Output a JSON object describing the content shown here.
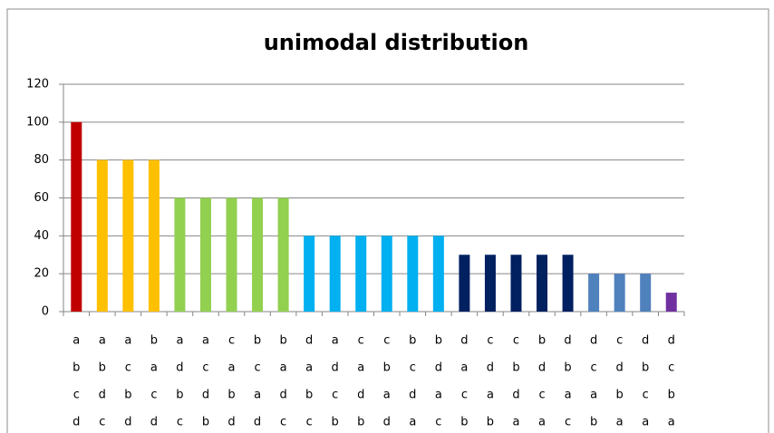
{
  "chart_data": {
    "type": "bar",
    "title": "unimodal distribution",
    "categories": [
      [
        "a",
        "b",
        "c",
        "d"
      ],
      [
        "a",
        "b",
        "d",
        "c"
      ],
      [
        "a",
        "c",
        "b",
        "d"
      ],
      [
        "b",
        "a",
        "c",
        "d"
      ],
      [
        "a",
        "d",
        "b",
        "c"
      ],
      [
        "a",
        "c",
        "d",
        "b"
      ],
      [
        "c",
        "a",
        "b",
        "d"
      ],
      [
        "b",
        "c",
        "a",
        "d"
      ],
      [
        "b",
        "a",
        "d",
        "c"
      ],
      [
        "d",
        "a",
        "b",
        "c"
      ],
      [
        "a",
        "d",
        "c",
        "b"
      ],
      [
        "c",
        "a",
        "d",
        "b"
      ],
      [
        "c",
        "b",
        "a",
        "d"
      ],
      [
        "b",
        "c",
        "d",
        "a"
      ],
      [
        "b",
        "d",
        "a",
        "c"
      ],
      [
        "d",
        "a",
        "c",
        "b"
      ],
      [
        "c",
        "d",
        "a",
        "b"
      ],
      [
        "c",
        "b",
        "d",
        "a"
      ],
      [
        "b",
        "d",
        "c",
        "a"
      ],
      [
        "d",
        "b",
        "a",
        "c"
      ],
      [
        "d",
        "c",
        "a",
        "b"
      ],
      [
        "c",
        "d",
        "b",
        "a"
      ],
      [
        "d",
        "b",
        "c",
        "a"
      ],
      [
        "d",
        "c",
        "b",
        "a"
      ]
    ],
    "values": [
      100,
      80,
      80,
      80,
      60,
      60,
      60,
      60,
      60,
      40,
      40,
      40,
      40,
      40,
      40,
      30,
      30,
      30,
      30,
      30,
      20,
      20,
      20,
      10
    ],
    "colors": [
      "#c00000",
      "#ffc000",
      "#ffc000",
      "#ffc000",
      "#92d050",
      "#92d050",
      "#92d050",
      "#92d050",
      "#92d050",
      "#00b0f0",
      "#00b0f0",
      "#00b0f0",
      "#00b0f0",
      "#00b0f0",
      "#00b0f0",
      "#002060",
      "#002060",
      "#002060",
      "#002060",
      "#002060",
      "#4f81bd",
      "#4f81bd",
      "#4f81bd",
      "#7030a0"
    ],
    "ylim": [
      0,
      120
    ],
    "yticks": [
      0,
      20,
      40,
      60,
      80,
      100,
      120
    ],
    "grid": true
  }
}
